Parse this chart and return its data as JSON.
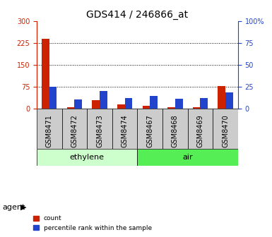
{
  "title": "GDS414 / 246866_at",
  "samples": [
    "GSM8471",
    "GSM8472",
    "GSM8473",
    "GSM8474",
    "GSM8467",
    "GSM8468",
    "GSM8469",
    "GSM8470"
  ],
  "counts": [
    240,
    4,
    28,
    13,
    9,
    4,
    4,
    78
  ],
  "percentiles": [
    25,
    10,
    20,
    12,
    14,
    11,
    12,
    18
  ],
  "groups": [
    {
      "label": "ethylene",
      "start": 0,
      "end": 4,
      "color": "#ccffcc"
    },
    {
      "label": "air",
      "start": 4,
      "end": 8,
      "color": "#55ee55"
    }
  ],
  "agent_label": "agent",
  "left_yticks": [
    0,
    75,
    150,
    225,
    300
  ],
  "right_yticks": [
    0,
    25,
    50,
    75,
    100
  ],
  "right_ylabels": [
    "0",
    "25",
    "50",
    "75",
    "100%"
  ],
  "ylim_left": [
    0,
    300
  ],
  "ylim_right": [
    0,
    100
  ],
  "count_color": "#cc2200",
  "percentile_color": "#2244cc",
  "grid_color": "black",
  "bar_width": 0.3,
  "legend_count": "count",
  "legend_percentile": "percentile rank within the sample",
  "title_fontsize": 10,
  "tick_fontsize": 7,
  "label_fontsize": 8,
  "xticklabel_fontsize": 7
}
